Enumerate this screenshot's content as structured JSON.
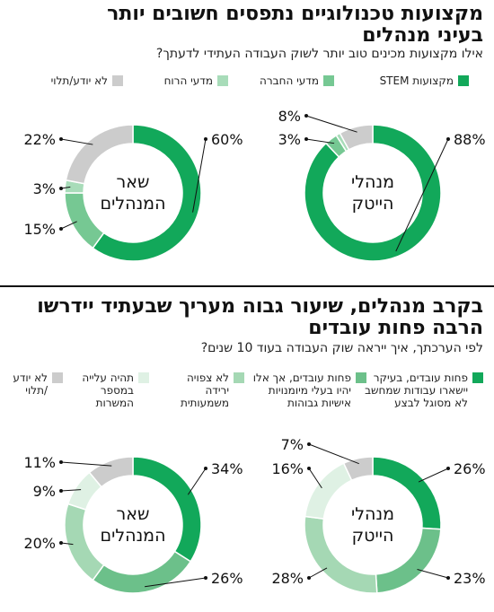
{
  "sections": [
    {
      "title_line1": "מקצועות טכנולוגיים נתפסים חשובים יותר",
      "title_line2": "בעיני מנהלים",
      "subtitle": "אילו מקצועות מכינים טוב יותר לשוק העבודה העתידי לדעתך?",
      "legend": [
        {
          "label": "מקצועות STEM",
          "color": "#12a85a"
        },
        {
          "label": "מדעי החברה",
          "color": "#76c893"
        },
        {
          "label": "מדעי הרוח",
          "color": "#a8dcb9"
        },
        {
          "label": "לא יודע/תלוי",
          "color": "#cccccc"
        }
      ]
    },
    {
      "title_line1": "בקרב מנהלים, שיעור גבוה מעריך שבעתיד יידרשו",
      "title_line2": "הרבה פחות עובדים",
      "subtitle": "לפי הערכתך, איך ייראה שוק העבודה בעוד 10 שנים?",
      "legend": [
        {
          "label": "פחות עובדים, בעיקר|יישארו עבודות שמחשב|לא מסוגל לבצע",
          "color": "#12a85a"
        },
        {
          "label": "פחות עובדים, אך אלו|יהיו בעלי מיומנויות|אישיות גבוהות",
          "color": "#6cc08a"
        },
        {
          "label": "לא צפויה|ירידה|משמעותית",
          "color": "#a5d8b4"
        },
        {
          "label": "תהיה עלייה|במספר|המשרות",
          "color": "#dff1e4"
        },
        {
          "label": "לא יודע|/תלוי",
          "color": "#cccccc"
        }
      ]
    }
  ],
  "chart_data": [
    {
      "type": "pie",
      "center_label": [
        "מנהלי",
        "הייטק"
      ],
      "categories": [
        "מקצועות STEM",
        "מדעי החברה",
        "מדעי הרוח",
        "לא יודע/תלוי"
      ],
      "values": [
        88,
        3,
        1,
        8
      ],
      "labels": [
        "88%",
        "3%",
        null,
        "8%"
      ],
      "colors": [
        "#12a85a",
        "#76c893",
        "#a8dcb9",
        "#cccccc"
      ]
    },
    {
      "type": "pie",
      "center_label": [
        "שאר",
        "המנהלים"
      ],
      "categories": [
        "מקצועות STEM",
        "מדעי החברה",
        "מדעי הרוח",
        "לא יודע/תלוי"
      ],
      "values": [
        60,
        15,
        3,
        22
      ],
      "labels": [
        "60%",
        "15%",
        "3%",
        "22%"
      ],
      "colors": [
        "#12a85a",
        "#76c893",
        "#a8dcb9",
        "#cccccc"
      ]
    },
    {
      "type": "pie",
      "center_label": [
        "מנהלי",
        "הייטק"
      ],
      "categories": [
        "פחות עובדים, בעיקר יישארו עבודות שמחשב לא מסוגל לבצע",
        "פחות עובדים, אך אלו יהיו בעלי מיומנויות אישיות גבוהות",
        "לא צפויה ירידה משמעותית",
        "תהיה עלייה במספר המשרות",
        "לא יודע/תלוי"
      ],
      "values": [
        26,
        23,
        28,
        16,
        7
      ],
      "labels": [
        "26%",
        "23%",
        "28%",
        "16%",
        "7%"
      ],
      "colors": [
        "#12a85a",
        "#6cc08a",
        "#a5d8b4",
        "#dff1e4",
        "#cccccc"
      ]
    },
    {
      "type": "pie",
      "center_label": [
        "שאר",
        "המנהלים"
      ],
      "categories": [
        "פחות עובדים, בעיקר יישארו עבודות שמחשב לא מסוגל לבצע",
        "פחות עובדים, אך אלו יהיו בעלי מיומנויות אישיות גבוהות",
        "לא צפויה ירידה משמעותית",
        "תהיה עלייה במספר המשרות",
        "לא יודע/תלוי"
      ],
      "values": [
        34,
        26,
        20,
        9,
        11
      ],
      "labels": [
        "34%",
        "26%",
        "20%",
        "9%",
        "11%"
      ],
      "colors": [
        "#12a85a",
        "#6cc08a",
        "#a5d8b4",
        "#dff1e4",
        "#cccccc"
      ]
    }
  ]
}
